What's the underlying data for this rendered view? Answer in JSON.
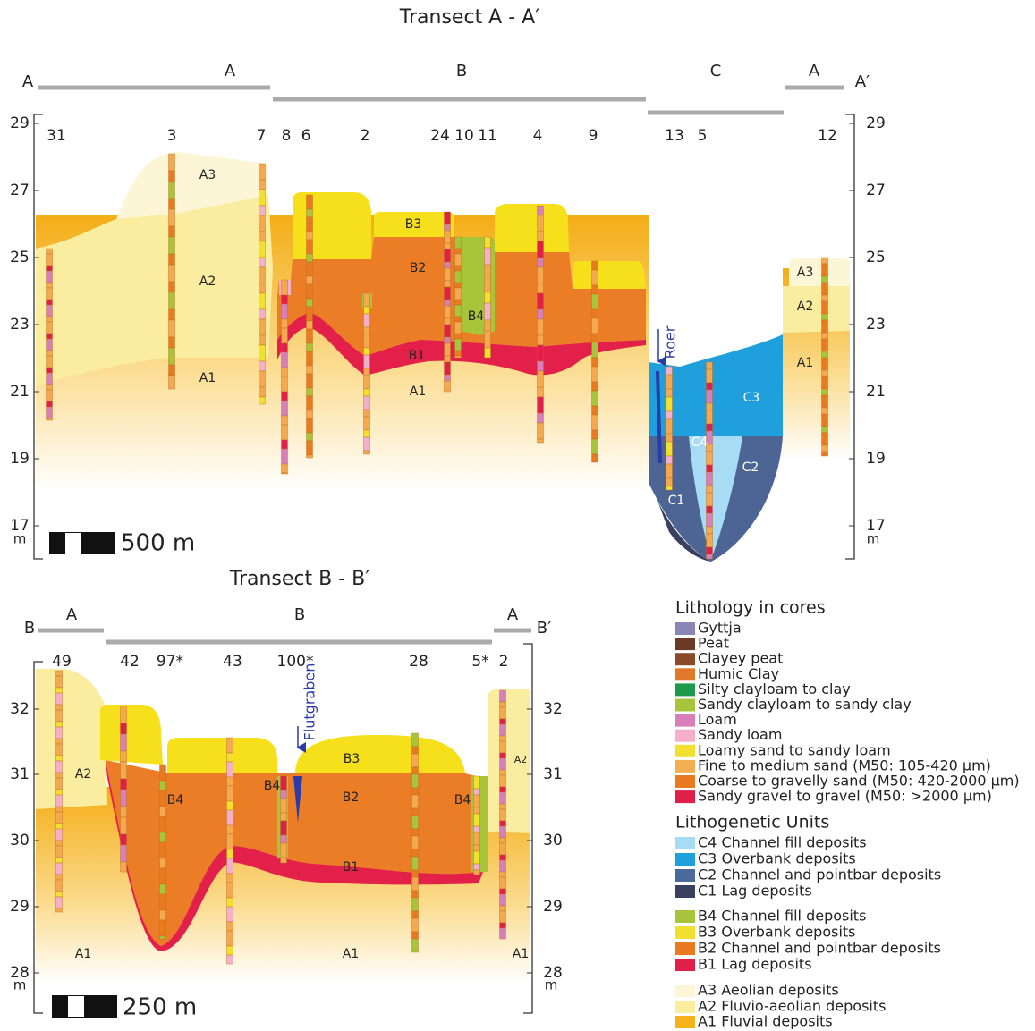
{
  "transect_a": {
    "title": "Transect A - A′",
    "end_labels": [
      "A",
      "A′"
    ],
    "zones": [
      "A",
      "B",
      "C",
      "A"
    ],
    "cores": [
      "31",
      "3",
      "7",
      "8",
      "6",
      "2",
      "24",
      "10",
      "11",
      "4",
      "9",
      "13",
      "5",
      "12"
    ],
    "units": [
      "A3",
      "A2",
      "A1",
      "B3",
      "B2",
      "B4",
      "B1",
      "A1",
      "C3",
      "C4",
      "C2",
      "C1",
      "A3",
      "A2",
      "A1"
    ],
    "axis_ticks": [
      29,
      27,
      25,
      23,
      21,
      19,
      17
    ],
    "axis_unit": "m",
    "annotation": "Roer",
    "scale_label": "500 m"
  },
  "transect_b": {
    "title": "Transect B - B′",
    "end_labels": [
      "B",
      "B′"
    ],
    "zones": [
      "A",
      "B",
      "A"
    ],
    "cores": [
      "49",
      "42",
      "97*",
      "43",
      "100*",
      "28",
      "5*",
      "2"
    ],
    "units": [
      "A2",
      "A1",
      "B4",
      "B4",
      "B3",
      "B2",
      "B1",
      "A1",
      "B4",
      "A1",
      "A2"
    ],
    "axis_ticks": [
      32,
      31,
      30,
      29,
      28
    ],
    "axis_unit": "m",
    "annotation": "Flutgraben",
    "scale_label": "250 m"
  },
  "legend": {
    "lithology_title": "Lithology in cores",
    "lithology": [
      "Gyttja",
      "Peat",
      "Clayey peat",
      "Humic Clay",
      "Silty clayloam to clay",
      "Sandy clayloam to sandy clay",
      "Loam",
      "Sandy loam",
      "Loamy sand to sandy loam",
      "Fine to medium sand (M50: 105-420 µm)",
      "Coarse to gravelly sand (M50: 420-2000 µm)",
      "Sandy gravel to gravel (M50: >2000 µm)"
    ],
    "units_title": "Lithogenetic Units",
    "units": [
      "C4 Channel fill deposits",
      "C3 Overbank deposits",
      "C2 Channel and pointbar deposits",
      "C1 Lag deposits",
      "B4 Channel fill deposits",
      "B3 Overbank deposits",
      "B2 Channel and pointbar deposits",
      "B1 Lag deposits",
      "A3 Aeolian deposits",
      "A2 Fluvio-aeolian deposits",
      "A1 Fluvial deposits"
    ]
  }
}
